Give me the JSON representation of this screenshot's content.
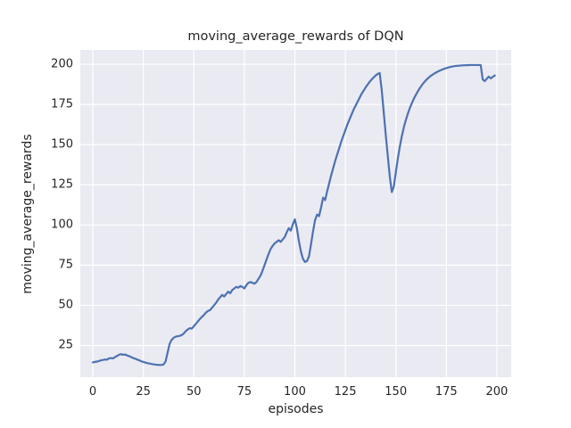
{
  "chart_data": {
    "type": "line",
    "title": "moving_average_rewards of DQN",
    "xlabel": "episodes",
    "ylabel": "moving_average_rewards",
    "x_ticks": [
      0,
      25,
      50,
      75,
      100,
      125,
      150,
      175,
      200
    ],
    "y_ticks": [
      25,
      50,
      75,
      100,
      125,
      150,
      175,
      200
    ],
    "xlim": [
      -6.2,
      207.1
    ],
    "ylim": [
      5.3,
      208.9
    ],
    "grid": true,
    "legend": "none",
    "style": "seaborn-darkgrid",
    "line_color": "#4C72B0",
    "plot_background_color": "#EAEAF2",
    "figure_background_color": "#FFFFFF",
    "grid_color": "#FFFFFF",
    "text_color": "#262626",
    "series": [
      {
        "name": "moving_average_rewards",
        "x": [
          0,
          1,
          2,
          3,
          4,
          5,
          6,
          7,
          8,
          9,
          10,
          11,
          12,
          13,
          14,
          15,
          16,
          17,
          18,
          19,
          20,
          21,
          22,
          23,
          24,
          25,
          26,
          27,
          28,
          29,
          30,
          31,
          32,
          33,
          34,
          35,
          36,
          37,
          38,
          39,
          40,
          41,
          42,
          43,
          44,
          45,
          46,
          47,
          48,
          49,
          50,
          51,
          52,
          53,
          54,
          55,
          56,
          57,
          58,
          59,
          60,
          61,
          62,
          63,
          64,
          65,
          66,
          67,
          68,
          69,
          70,
          71,
          72,
          73,
          74,
          75,
          76,
          77,
          78,
          79,
          80,
          81,
          82,
          83,
          84,
          85,
          86,
          87,
          88,
          89,
          90,
          91,
          92,
          93,
          94,
          95,
          96,
          97,
          98,
          99,
          100,
          101,
          102,
          103,
          104,
          105,
          106,
          107,
          108,
          109,
          110,
          111,
          112,
          113,
          114,
          115,
          116,
          117,
          118,
          119,
          120,
          121,
          122,
          123,
          124,
          125,
          126,
          127,
          128,
          129,
          130,
          131,
          132,
          133,
          134,
          135,
          136,
          137,
          138,
          139,
          140,
          141,
          142,
          143,
          144,
          145,
          146,
          147,
          148,
          149,
          150,
          151,
          152,
          153,
          154,
          155,
          156,
          157,
          158,
          159,
          160,
          161,
          162,
          163,
          164,
          165,
          166,
          167,
          168,
          169,
          170,
          171,
          172,
          173,
          174,
          175,
          176,
          177,
          178,
          179,
          180,
          181,
          182,
          183,
          184,
          185,
          186,
          187,
          188,
          189,
          190,
          191,
          192,
          193,
          194,
          195,
          196,
          197,
          198,
          199
        ],
        "y": [
          14.5,
          14.8,
          15,
          15.3,
          15.8,
          16,
          16.3,
          16.2,
          17,
          17.2,
          17,
          17.8,
          18.5,
          19.3,
          19.6,
          19.2,
          19.4,
          18.8,
          18.4,
          17.8,
          17.2,
          16.8,
          16.2,
          15.8,
          15.2,
          14.8,
          14.4,
          14,
          13.8,
          13.5,
          13.3,
          13.1,
          13,
          12.9,
          12.9,
          13.2,
          15,
          20.5,
          26,
          28.5,
          29.8,
          30.5,
          30.8,
          31,
          31.5,
          32.5,
          34,
          35,
          35.8,
          35.5,
          37,
          38.5,
          40,
          41.5,
          42.8,
          44,
          45.5,
          46.5,
          47,
          48.5,
          50,
          51.5,
          53.5,
          55,
          56.5,
          55.5,
          57,
          58.5,
          57.5,
          59.5,
          60.5,
          61.5,
          61,
          62,
          61.5,
          60.5,
          62.5,
          64,
          64.5,
          64,
          63.5,
          64.5,
          66.5,
          68.5,
          71.5,
          75,
          78.5,
          82,
          85,
          87,
          88.5,
          89.5,
          90.5,
          89.5,
          91,
          92.5,
          95.5,
          98,
          96.5,
          100.5,
          103.5,
          98,
          90,
          83.5,
          79,
          77,
          77.5,
          80.5,
          88,
          96,
          103,
          106.5,
          105.5,
          111,
          117,
          115.5,
          121,
          126,
          131,
          135.5,
          140,
          144,
          148,
          152,
          155.5,
          159,
          162.5,
          165.5,
          168.5,
          171.5,
          174,
          176.5,
          179,
          181.5,
          183.5,
          185.5,
          187.3,
          189,
          190.5,
          191.8,
          193,
          194,
          194.5,
          184,
          170,
          156,
          143,
          130,
          120.5,
          124,
          133,
          141.5,
          149,
          155.5,
          161,
          165.5,
          169.5,
          173,
          176,
          178.8,
          181.2,
          183.4,
          185.4,
          187.2,
          188.8,
          190.2,
          191.4,
          192.5,
          193.4,
          194.2,
          194.9,
          195.6,
          196.2,
          196.7,
          197.2,
          197.6,
          198,
          198.3,
          198.6,
          198.8,
          199,
          199.1,
          199.2,
          199.3,
          199.35,
          199.4,
          199.45,
          199.5,
          199.5,
          199.5,
          199.5,
          199.5,
          199.4,
          190.5,
          189.5,
          191,
          192.3,
          191.2,
          192.2,
          193
        ]
      }
    ]
  }
}
